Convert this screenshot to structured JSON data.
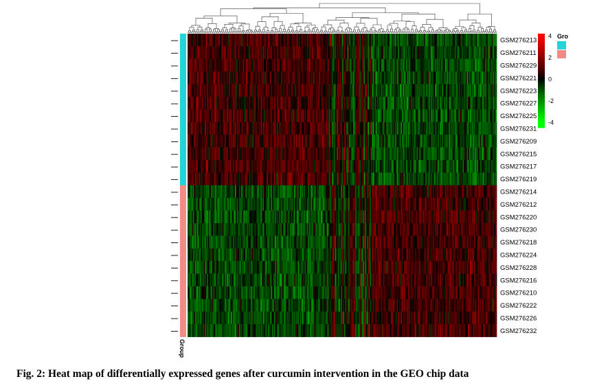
{
  "caption": "Fig. 2: Heat map of differentially expressed genes after curcumin intervention in the GEO chip data",
  "chart_data": {
    "type": "heatmap",
    "rows": [
      "GSM276213",
      "GSM276211",
      "GSM276229",
      "GSM276221",
      "GSM276223",
      "GSM276227",
      "GSM276225",
      "GSM276231",
      "GSM276209",
      "GSM276215",
      "GSM276217",
      "GSM276219",
      "GSM276214",
      "GSM276212",
      "GSM276220",
      "GSM276230",
      "GSM276218",
      "GSM276224",
      "GSM276228",
      "GSM276216",
      "GSM276210",
      "GSM276222",
      "GSM276226",
      "GSM276232"
    ],
    "row_groups": [
      0,
      0,
      0,
      0,
      0,
      0,
      0,
      0,
      0,
      0,
      0,
      0,
      1,
      1,
      1,
      1,
      1,
      1,
      1,
      1,
      1,
      1,
      1,
      1
    ],
    "group_colors": [
      "#22d3d8",
      "#f08c84"
    ],
    "group_axis_label": "Group",
    "legend_title": "Gro",
    "color_scale": {
      "ticks": [
        4,
        2,
        0,
        -2,
        -4
      ],
      "tick_labels": [
        "4",
        "2",
        "0",
        "-2",
        "-4"
      ],
      "range": [
        -4.5,
        4.2
      ],
      "high_color": "#ff0000",
      "mid_color": "#000000",
      "low_color": "#00ff00"
    },
    "column_dendrogram": true,
    "num_genes": 300
  }
}
